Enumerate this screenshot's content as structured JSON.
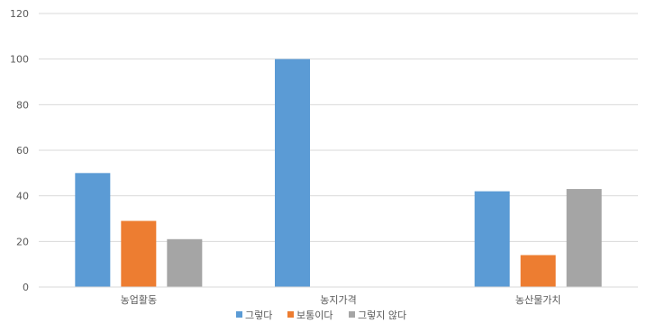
{
  "chart_data": {
    "type": "bar",
    "categories": [
      "농업활동",
      "농지가격",
      "농산물가치"
    ],
    "series": [
      {
        "name": "그렇다",
        "values": [
          50,
          100,
          42
        ],
        "color": "#5B9BD5"
      },
      {
        "name": "보통이다",
        "values": [
          29,
          0,
          14
        ],
        "color": "#ED7D31"
      },
      {
        "name": "그렇지 않다",
        "values": [
          21,
          0,
          43
        ],
        "color": "#A5A5A5"
      }
    ],
    "ylim": [
      0,
      120
    ],
    "yticks": [
      0,
      20,
      40,
      60,
      80,
      100,
      120
    ],
    "grid": true,
    "legend_position": "bottom",
    "title": "",
    "xlabel": "",
    "ylabel": ""
  }
}
